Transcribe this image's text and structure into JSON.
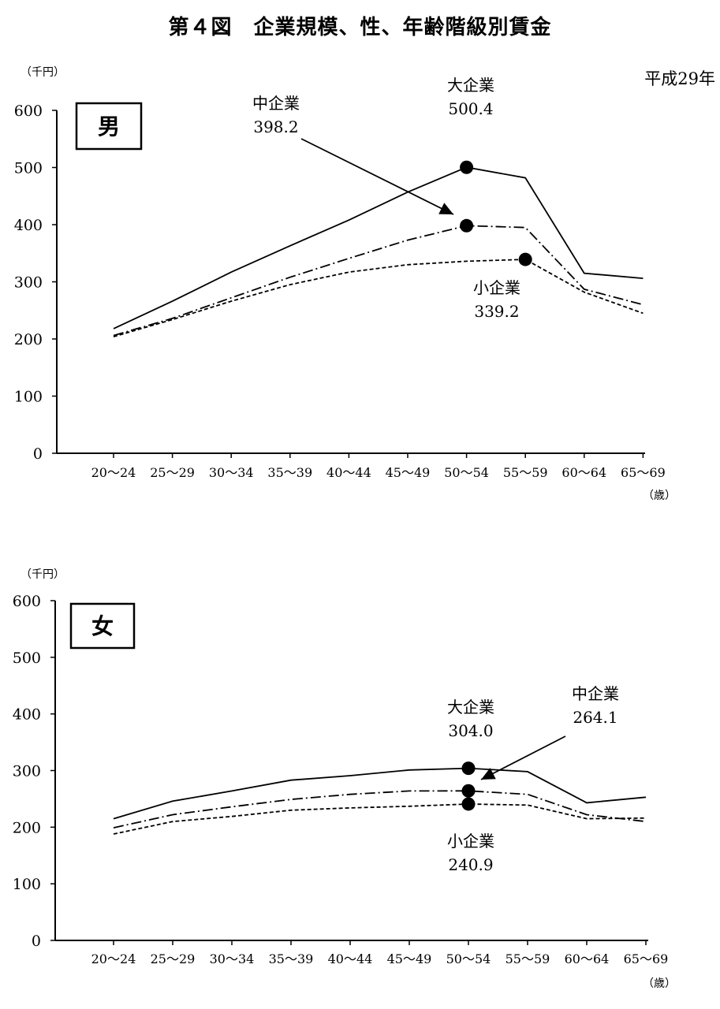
{
  "title": "第４図　企業規模、性、年齢階級別賃金",
  "period": "平成29年",
  "chart_data": [
    {
      "type": "line",
      "panel_label": "男",
      "ylabel": "（千円）",
      "xlabel": "（歳）",
      "ylim": [
        0,
        600
      ],
      "yticks": [
        "0",
        "100",
        "200",
        "300",
        "400",
        "500",
        "600"
      ],
      "categories": [
        "20～24",
        "25～29",
        "30～34",
        "35～39",
        "40～44",
        "45～49",
        "50～54",
        "55～59",
        "60～64",
        "65～69"
      ],
      "series": [
        {
          "name": "大企業",
          "style": "solid",
          "values": [
            218,
            266,
            317,
            363,
            408,
            457,
            500.4,
            482,
            315,
            306
          ]
        },
        {
          "name": "中企業",
          "style": "dashdot",
          "values": [
            206,
            236,
            272,
            308,
            341,
            373,
            398.2,
            395,
            287,
            260
          ]
        },
        {
          "name": "小企業",
          "style": "dotted",
          "values": [
            204,
            234,
            266,
            295,
            317,
            330,
            336,
            339.2,
            282,
            245
          ]
        }
      ],
      "annotations": [
        {
          "label": "大企業",
          "value": "500.4"
        },
        {
          "label": "中企業",
          "value": "398.2"
        },
        {
          "label": "小企業",
          "value": "339.2"
        }
      ]
    },
    {
      "type": "line",
      "panel_label": "女",
      "ylabel": "（千円）",
      "xlabel": "（歳）",
      "ylim": [
        0,
        600
      ],
      "yticks": [
        "0",
        "100",
        "200",
        "300",
        "400",
        "500",
        "600"
      ],
      "categories": [
        "20～24",
        "25～29",
        "30～34",
        "35～39",
        "40～44",
        "45～49",
        "50～54",
        "55～59",
        "60～64",
        "65～69"
      ],
      "series": [
        {
          "name": "大企業",
          "style": "solid",
          "values": [
            215,
            246,
            264,
            283,
            291,
            301,
            304.0,
            298,
            243,
            253
          ]
        },
        {
          "name": "中企業",
          "style": "dashdot",
          "values": [
            199,
            222,
            236,
            249,
            258,
            264,
            264.1,
            258,
            222,
            210
          ]
        },
        {
          "name": "小企業",
          "style": "dotted",
          "values": [
            188,
            210,
            219,
            230,
            234,
            237,
            240.9,
            239,
            215,
            216
          ]
        }
      ],
      "annotations": [
        {
          "label": "大企業",
          "value": "304.0"
        },
        {
          "label": "中企業",
          "value": "264.1"
        },
        {
          "label": "小企業",
          "value": "240.9"
        }
      ]
    }
  ]
}
